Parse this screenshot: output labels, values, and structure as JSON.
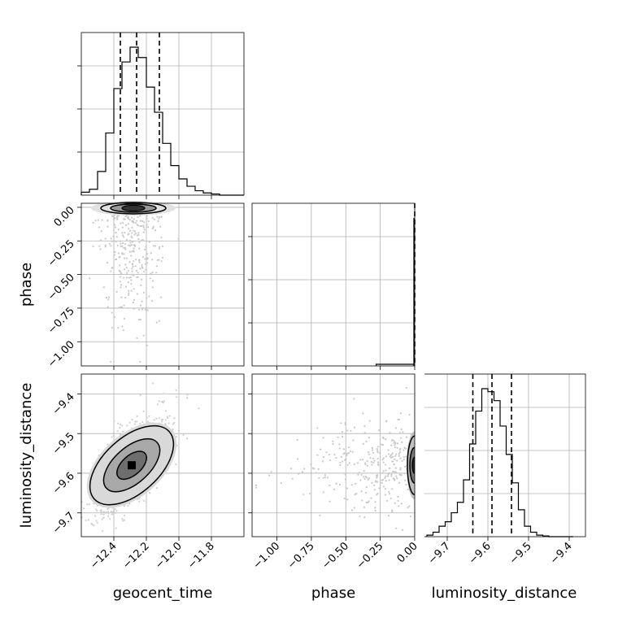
{
  "chart_data": {
    "type": "corner",
    "parameters": [
      "geocent_time",
      "phase",
      "luminosity_distance"
    ],
    "panels": [
      {
        "kind": "histogram",
        "param": "geocent_time",
        "xlim": [
          -12.6,
          -11.6
        ],
        "xticks": [
          -12.4,
          -12.2,
          -12.0,
          -11.8
        ],
        "xtick_labels": [
          "−12.4",
          "−12.2",
          "−12.0",
          "−11.8"
        ],
        "bin_edges": [
          -12.6,
          -12.55,
          -12.5,
          -12.45,
          -12.4,
          -12.35,
          -12.3,
          -12.25,
          -12.2,
          -12.15,
          -12.1,
          -12.05,
          -12.0,
          -11.95,
          -11.9,
          -11.85,
          -11.8,
          -11.75,
          -11.7,
          -11.65,
          -11.6
        ],
        "counts": [
          0.02,
          0.04,
          0.16,
          0.42,
          0.72,
          0.9,
          1.0,
          0.93,
          0.73,
          0.56,
          0.35,
          0.2,
          0.11,
          0.06,
          0.03,
          0.015,
          0.008,
          0.0,
          0.0,
          0.0
        ],
        "quantiles": [
          -12.36,
          -12.26,
          -12.12
        ]
      },
      {
        "kind": "histogram",
        "param": "phase",
        "xlim": [
          -1.18,
          0.0
        ],
        "xticks": [
          -1.0,
          -0.75,
          -0.5,
          -0.25,
          0.0
        ],
        "xtick_labels": [
          "−1.00",
          "−0.75",
          "−0.50",
          "−0.25",
          "0.00"
        ],
        "bin_edges": [
          -0.28,
          -0.03,
          0.0
        ],
        "counts": [
          0.01,
          1.0
        ],
        "quantiles": [
          0.0
        ]
      },
      {
        "kind": "histogram",
        "param": "luminosity_distance",
        "xlim": [
          -9.76,
          -9.36
        ],
        "xticks": [
          -9.7,
          -9.6,
          -9.5,
          -9.4
        ],
        "xtick_labels": [
          "−9.7",
          "−9.6",
          "−9.5",
          "−9.4"
        ],
        "bin_edges": [
          -9.75,
          -9.735,
          -9.72,
          -9.705,
          -9.69,
          -9.675,
          -9.66,
          -9.645,
          -9.63,
          -9.615,
          -9.6,
          -9.585,
          -9.57,
          -9.555,
          -9.54,
          -9.525,
          -9.51,
          -9.495,
          -9.48,
          -9.465,
          -9.45,
          -9.435,
          -9.42,
          -9.405,
          -9.39
        ],
        "counts": [
          0.01,
          0.03,
          0.07,
          0.1,
          0.16,
          0.23,
          0.38,
          0.62,
          0.84,
          0.99,
          0.97,
          0.91,
          0.74,
          0.55,
          0.36,
          0.18,
          0.07,
          0.03,
          0.01,
          0.005,
          0.0,
          0.0,
          0.0,
          0.0
        ],
        "quantiles": [
          -9.637,
          -9.59,
          -9.542
        ]
      },
      {
        "kind": "2d",
        "x": "geocent_time",
        "y": "phase",
        "ylim": [
          -1.18,
          0.03
        ],
        "yticks": [
          0.0,
          -0.25,
          -0.5,
          -0.75,
          -1.0
        ],
        "ytick_labels": [
          "0.00",
          "−0.25",
          "−0.50",
          "−0.75",
          "−1.00"
        ],
        "center": [
          -12.28,
          0.0
        ]
      },
      {
        "kind": "2d",
        "x": "geocent_time",
        "y": "luminosity_distance",
        "ylim": [
          -9.76,
          -9.35
        ],
        "yticks": [
          -9.4,
          -9.5,
          -9.6,
          -9.7
        ],
        "ytick_labels": [
          "−9.4",
          "−9.5",
          "−9.6",
          "−9.7"
        ],
        "center": [
          -12.29,
          -9.58
        ],
        "correlation": 0.65
      },
      {
        "kind": "2d",
        "x": "phase",
        "y": "luminosity_distance",
        "center": [
          0.0,
          -9.58
        ]
      }
    ],
    "grid": true,
    "xlabel_bottom": [
      "geocent_time",
      "phase",
      "luminosity_distance"
    ],
    "ylabel_left": [
      "phase",
      "luminosity_distance"
    ]
  }
}
